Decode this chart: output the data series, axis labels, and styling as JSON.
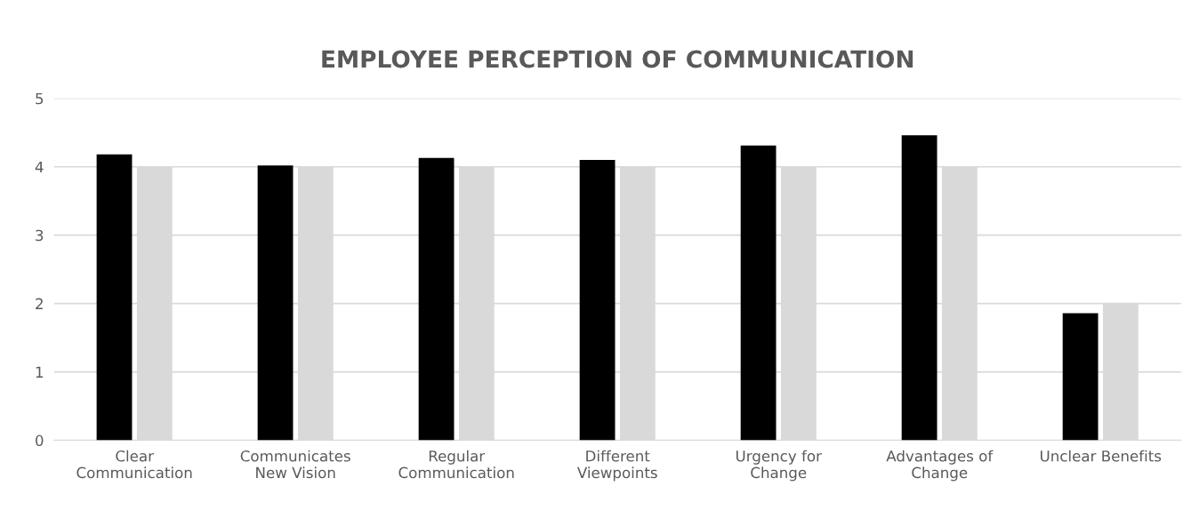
{
  "chart_data": {
    "type": "bar",
    "title": "EMPLOYEE PERCEPTION OF COMMUNICATION",
    "categories": [
      "Clear\nCommunication",
      "Communicates\nNew Vision",
      "Regular\nCommunication",
      "Different\nViewpoints",
      "Urgency for\nChange",
      "Advantages of\nChange",
      "Unclear Benefits"
    ],
    "series": [
      {
        "color": "#000000",
        "values": [
          4.18,
          4.02,
          4.13,
          4.1,
          4.31,
          4.46,
          1.86
        ]
      },
      {
        "color": "#d9d9d9",
        "values": [
          4,
          4,
          4,
          4,
          4,
          4,
          2
        ]
      }
    ],
    "ylim": [
      0,
      5
    ],
    "yticks": [
      0,
      1,
      2,
      3,
      4,
      5
    ],
    "grid": "y"
  }
}
